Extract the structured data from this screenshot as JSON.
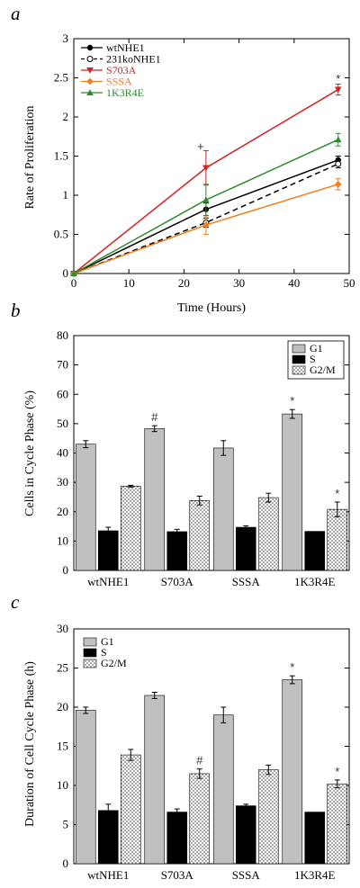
{
  "chart_data": [
    {
      "panel": "a",
      "type": "line",
      "xlabel": "Time (Hours)",
      "ylabel": "Rate of Proliferation",
      "xlim": [
        0,
        50
      ],
      "ylim": [
        0,
        3
      ],
      "xticks": [
        0,
        10,
        20,
        30,
        40,
        50
      ],
      "yticks": [
        0,
        0.5,
        1,
        1.5,
        2,
        2.5,
        3
      ],
      "x": [
        0,
        24,
        48
      ],
      "legend": "top-left",
      "series": [
        {
          "name": "wtNHE1",
          "color": "#000000",
          "marker": "circle",
          "dash": "solid",
          "text_color": "#000000",
          "values": [
            0,
            0.82,
            1.45
          ],
          "errors": [
            0,
            0.08,
            0.05
          ]
        },
        {
          "name": "231koNHE1",
          "color": "#000000",
          "marker": "open-circle",
          "dash": "dashed",
          "text_color": "#000000",
          "values": [
            0,
            0.65,
            1.4
          ],
          "errors": [
            0,
            0.06,
            0.05
          ]
        },
        {
          "name": "S703A",
          "color": "#d32020",
          "marker": "triangle-down",
          "dash": "solid",
          "text_color": "#d32020",
          "values": [
            0,
            1.35,
            2.35
          ],
          "errors": [
            0,
            0.22,
            0.07
          ]
        },
        {
          "name": "SSSA",
          "color": "#f07f1e",
          "marker": "diamond",
          "dash": "solid",
          "text_color": "#f07f1e",
          "values": [
            0,
            0.62,
            1.14
          ],
          "errors": [
            0,
            0.12,
            0.07
          ]
        },
        {
          "name": "1K3R4E",
          "color": "#2e8b2e",
          "marker": "triangle-up",
          "dash": "solid",
          "text_color": "#2e8b2e",
          "values": [
            0,
            0.94,
            1.71
          ],
          "errors": [
            0,
            0.2,
            0.08
          ]
        }
      ],
      "annotations": [
        {
          "text": "+",
          "x": 23,
          "y": 1.62
        },
        {
          "text": "*",
          "x": 48,
          "y": 2.48
        }
      ]
    },
    {
      "panel": "b",
      "type": "bar",
      "ylabel": "Cells in Cycle Phase (%)",
      "ylim": [
        0,
        80
      ],
      "yticks": [
        0,
        10,
        20,
        30,
        40,
        50,
        60,
        70,
        80
      ],
      "categories": [
        "wtNHE1",
        "S703A",
        "SSSA",
        "1K3R4E"
      ],
      "legend": "top-right",
      "series": [
        {
          "name": "G1",
          "fill": "gray",
          "values": [
            43,
            48.3,
            41.7,
            53.3
          ],
          "errors": [
            1.2,
            1.0,
            2.5,
            1.5
          ]
        },
        {
          "name": "S",
          "fill": "black",
          "values": [
            13.5,
            13.2,
            14.7,
            13.3
          ],
          "errors": [
            1.2,
            0.8,
            0.5,
            0
          ]
        },
        {
          "name": "G2/M",
          "fill": "dotted",
          "values": [
            28.7,
            23.8,
            24.8,
            20.8
          ],
          "errors": [
            0.3,
            1.5,
            1.5,
            2.5
          ]
        }
      ],
      "annotations": [
        {
          "text": "#",
          "category": 1,
          "series": 0
        },
        {
          "text": "*",
          "category": 3,
          "series": 0
        },
        {
          "text": "*",
          "category": 3,
          "series": 2
        }
      ]
    },
    {
      "panel": "c",
      "type": "bar",
      "ylabel": "Duration of Cell Cycle Phase (h)",
      "ylim": [
        0,
        30
      ],
      "yticks": [
        0,
        5,
        10,
        15,
        20,
        25,
        30
      ],
      "categories": [
        "wtNHE1",
        "S703A",
        "SSSA",
        "1K3R4E"
      ],
      "legend": "top-left",
      "series": [
        {
          "name": "G1",
          "fill": "gray",
          "values": [
            19.6,
            21.5,
            19,
            23.5
          ],
          "errors": [
            0.4,
            0.4,
            1.0,
            0.5
          ]
        },
        {
          "name": "S",
          "fill": "black",
          "values": [
            6.8,
            6.6,
            7.4,
            6.6
          ],
          "errors": [
            0.8,
            0.4,
            0.2,
            0
          ]
        },
        {
          "name": "G2/M",
          "fill": "dotted",
          "values": [
            13.9,
            11.5,
            12,
            10.2
          ],
          "errors": [
            0.7,
            0.6,
            0.6,
            0.5
          ]
        }
      ],
      "annotations": [
        {
          "text": "#",
          "category": 1,
          "series": 2
        },
        {
          "text": "*",
          "category": 3,
          "series": 0
        },
        {
          "text": "*",
          "category": 3,
          "series": 2
        }
      ]
    }
  ]
}
